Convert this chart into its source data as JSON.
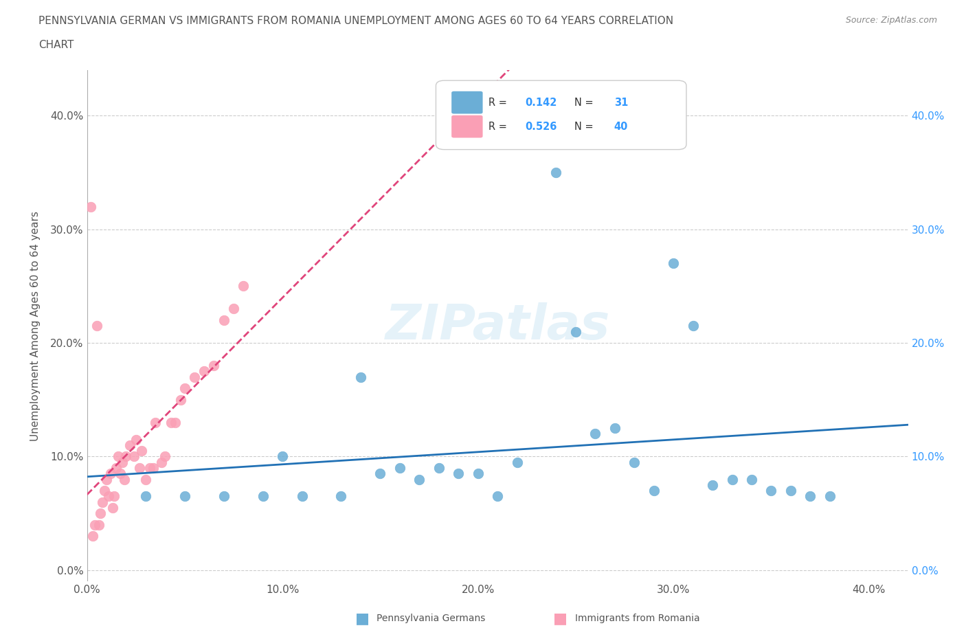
{
  "title_line1": "PENNSYLVANIA GERMAN VS IMMIGRANTS FROM ROMANIA UNEMPLOYMENT AMONG AGES 60 TO 64 YEARS CORRELATION",
  "title_line2": "CHART",
  "source": "Source: ZipAtlas.com",
  "ylabel": "Unemployment Among Ages 60 to 64 years",
  "xlim": [
    0.0,
    0.42
  ],
  "ylim": [
    -0.01,
    0.44
  ],
  "legend_blue_r": "0.142",
  "legend_blue_n": "31",
  "legend_pink_r": "0.526",
  "legend_pink_n": "40",
  "blue_color": "#6baed6",
  "pink_color": "#fa9fb5",
  "blue_line_color": "#2171b5",
  "pink_line_color": "#e0457b",
  "background_color": "#ffffff",
  "watermark": "ZIPatlas",
  "blue_scatter_x": [
    0.03,
    0.05,
    0.07,
    0.09,
    0.11,
    0.13,
    0.15,
    0.17,
    0.19,
    0.21,
    0.22,
    0.24,
    0.25,
    0.27,
    0.28,
    0.29,
    0.3,
    0.31,
    0.33,
    0.34,
    0.35,
    0.36,
    0.37,
    0.38,
    0.14,
    0.16,
    0.18,
    0.2,
    0.26,
    0.32,
    0.1
  ],
  "blue_scatter_y": [
    0.065,
    0.065,
    0.065,
    0.065,
    0.065,
    0.065,
    0.085,
    0.08,
    0.085,
    0.065,
    0.095,
    0.35,
    0.21,
    0.125,
    0.095,
    0.07,
    0.27,
    0.215,
    0.08,
    0.08,
    0.07,
    0.07,
    0.065,
    0.065,
    0.17,
    0.09,
    0.09,
    0.085,
    0.12,
    0.075,
    0.1
  ],
  "pink_scatter_x": [
    0.005,
    0.006,
    0.007,
    0.008,
    0.009,
    0.01,
    0.011,
    0.012,
    0.013,
    0.014,
    0.015,
    0.016,
    0.017,
    0.018,
    0.019,
    0.02,
    0.022,
    0.024,
    0.025,
    0.027,
    0.028,
    0.03,
    0.032,
    0.034,
    0.035,
    0.038,
    0.04,
    0.043,
    0.045,
    0.048,
    0.05,
    0.055,
    0.06,
    0.065,
    0.07,
    0.075,
    0.08,
    0.003,
    0.004,
    0.002
  ],
  "pink_scatter_y": [
    0.215,
    0.04,
    0.05,
    0.06,
    0.07,
    0.08,
    0.065,
    0.085,
    0.055,
    0.065,
    0.09,
    0.1,
    0.085,
    0.095,
    0.08,
    0.1,
    0.11,
    0.1,
    0.115,
    0.09,
    0.105,
    0.08,
    0.09,
    0.09,
    0.13,
    0.095,
    0.1,
    0.13,
    0.13,
    0.15,
    0.16,
    0.17,
    0.175,
    0.18,
    0.22,
    0.23,
    0.25,
    0.03,
    0.04,
    0.32
  ]
}
